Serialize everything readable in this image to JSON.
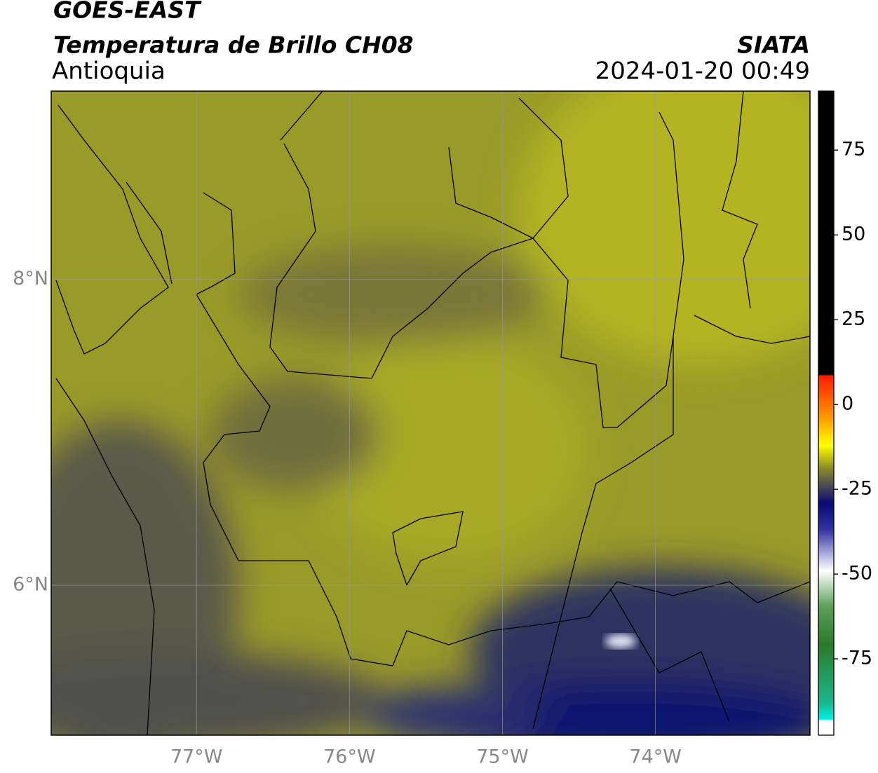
{
  "header": {
    "satellite": "GOES-EAST",
    "product": "Temperatura de Brillo CH08",
    "region": "Antioquia",
    "source": "SIATA",
    "timestamp": "2024-01-20 00:49"
  },
  "map": {
    "xlim": [
      -77.95,
      -72.99
    ],
    "ylim": [
      5.02,
      9.23
    ],
    "xticks": [
      {
        "value": -77,
        "label": "77°W"
      },
      {
        "value": -76,
        "label": "76°W"
      },
      {
        "value": -75,
        "label": "75°W"
      },
      {
        "value": -74,
        "label": "74°W"
      }
    ],
    "yticks": [
      {
        "value": 8,
        "label": "8°N"
      },
      {
        "value": 6,
        "label": "6°N"
      }
    ]
  },
  "colorbar": {
    "lim": [
      -97.5,
      92.4
    ],
    "ticks": [
      75,
      50,
      25,
      0,
      -25,
      -50,
      -75
    ]
  }
}
